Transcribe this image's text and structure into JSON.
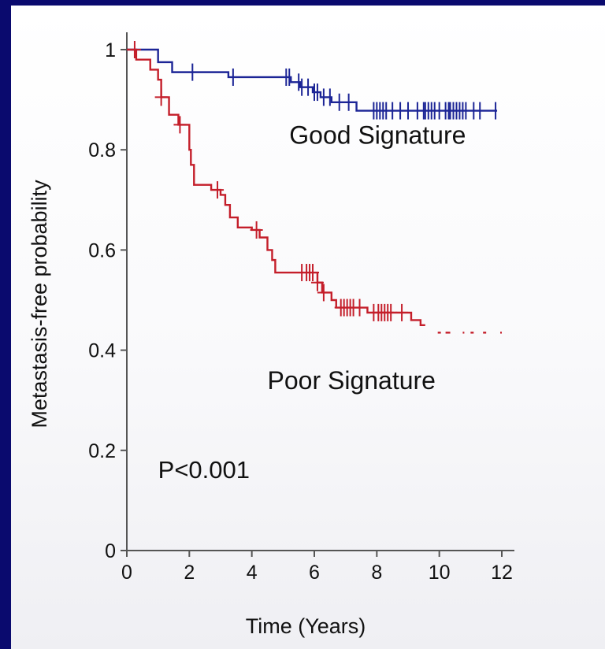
{
  "chart_data": {
    "type": "line",
    "subtype": "kaplan-meier",
    "xlabel": "Time (Years)",
    "ylabel": "Metastasis-free probability",
    "xlim": [
      0,
      12
    ],
    "ylim": [
      0,
      1
    ],
    "x_ticks": [
      0,
      2,
      4,
      6,
      8,
      10,
      12
    ],
    "y_ticks": [
      0,
      0.2,
      0.4,
      0.6,
      0.8,
      1
    ],
    "y_tick_labels": [
      "0",
      "0.2",
      "0.4",
      "0.6",
      "0.8",
      "1"
    ],
    "grid": false,
    "series": [
      {
        "name": "Good Signature",
        "color": "#1c2596",
        "steps": [
          [
            0,
            1.0
          ],
          [
            0.95,
            1.0
          ],
          [
            1.0,
            0.975
          ],
          [
            1.4,
            0.975
          ],
          [
            1.45,
            0.955
          ],
          [
            3.2,
            0.955
          ],
          [
            3.25,
            0.945
          ],
          [
            5.2,
            0.945
          ],
          [
            5.25,
            0.935
          ],
          [
            5.5,
            0.935
          ],
          [
            5.55,
            0.925
          ],
          [
            5.9,
            0.925
          ],
          [
            5.95,
            0.915
          ],
          [
            6.15,
            0.915
          ],
          [
            6.2,
            0.905
          ],
          [
            6.5,
            0.905
          ],
          [
            6.55,
            0.895
          ],
          [
            7.3,
            0.895
          ],
          [
            7.35,
            0.878
          ],
          [
            11.85,
            0.878
          ]
        ],
        "censor_x": [
          2.1,
          3.4,
          5.1,
          5.2,
          5.5,
          5.6,
          5.8,
          6.0,
          6.1,
          6.3,
          6.5,
          6.8,
          7.1,
          7.9,
          8.0,
          8.1,
          8.2,
          8.3,
          8.5,
          8.75,
          9.0,
          9.3,
          9.5,
          9.55,
          9.65,
          9.75,
          9.85,
          10.0,
          10.2,
          10.3,
          10.35,
          10.45,
          10.55,
          10.65,
          10.75,
          10.85,
          11.1,
          11.3,
          11.8
        ]
      },
      {
        "name": "Poor Signature",
        "color": "#c41e2a",
        "steps": [
          [
            0,
            1.0
          ],
          [
            0.25,
            1.0
          ],
          [
            0.3,
            0.98
          ],
          [
            0.7,
            0.98
          ],
          [
            0.75,
            0.96
          ],
          [
            0.95,
            0.96
          ],
          [
            1.0,
            0.94
          ],
          [
            1.05,
            0.94
          ],
          [
            1.1,
            0.905
          ],
          [
            1.3,
            0.905
          ],
          [
            1.35,
            0.87
          ],
          [
            1.6,
            0.87
          ],
          [
            1.65,
            0.85
          ],
          [
            1.95,
            0.85
          ],
          [
            2.0,
            0.8
          ],
          [
            2.05,
            0.77
          ],
          [
            2.15,
            0.73
          ],
          [
            2.7,
            0.72
          ],
          [
            3.0,
            0.71
          ],
          [
            3.15,
            0.69
          ],
          [
            3.3,
            0.665
          ],
          [
            3.55,
            0.645
          ],
          [
            4.0,
            0.64
          ],
          [
            4.25,
            0.625
          ],
          [
            4.5,
            0.6
          ],
          [
            4.65,
            0.58
          ],
          [
            4.75,
            0.555
          ],
          [
            6.0,
            0.555
          ],
          [
            6.1,
            0.535
          ],
          [
            6.25,
            0.515
          ],
          [
            6.55,
            0.5
          ],
          [
            6.7,
            0.485
          ],
          [
            7.65,
            0.485
          ],
          [
            7.7,
            0.475
          ],
          [
            9.0,
            0.475
          ],
          [
            9.1,
            0.46
          ],
          [
            9.35,
            0.46
          ],
          [
            9.4,
            0.45
          ],
          [
            9.55,
            0.45
          ]
        ],
        "censor_x": [
          0.25,
          1.1,
          1.7,
          2.9,
          4.15,
          5.6,
          5.75,
          5.85,
          5.95,
          6.1,
          6.3,
          6.85,
          6.95,
          7.05,
          7.15,
          7.25,
          7.45,
          7.9,
          8.05,
          8.15,
          8.25,
          8.35,
          8.45,
          8.8
        ],
        "tail_segments": [
          [
            9.95,
            10.05
          ],
          [
            10.2,
            10.35
          ],
          [
            10.75,
            10.8
          ],
          [
            11.0,
            11.1
          ],
          [
            11.4,
            11.5
          ],
          [
            11.95,
            12.0
          ]
        ],
        "tail_y": 0.435
      }
    ],
    "annotations": [
      {
        "text": "P<0.001",
        "x": 1.0,
        "y": 0.145
      }
    ],
    "label_positions": [
      {
        "series": "Good Signature",
        "x": 5.2,
        "y": 0.82
      },
      {
        "series": "Poor Signature",
        "x": 4.5,
        "y": 0.33
      }
    ]
  }
}
